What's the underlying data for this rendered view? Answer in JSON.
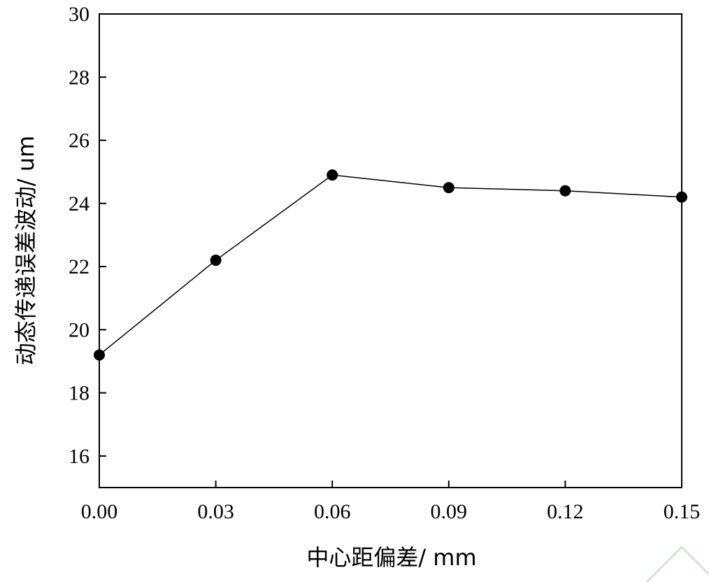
{
  "chart_data": {
    "type": "line",
    "title": "",
    "xlabel": "中心距偏差/ mm",
    "ylabel": "动态传递误差波动/ um",
    "xlim": [
      0.0,
      0.15
    ],
    "ylim": [
      15,
      30
    ],
    "x_ticks": [
      "0.00",
      "0.03",
      "0.06",
      "0.09",
      "0.12",
      "0.15"
    ],
    "y_ticks": [
      "16",
      "18",
      "20",
      "22",
      "24",
      "26",
      "28",
      "30"
    ],
    "grid": false,
    "legend": "none",
    "series": [
      {
        "x": [
          0.0,
          0.03,
          0.06,
          0.09,
          0.12,
          0.15
        ],
        "y": [
          19.2,
          22.2,
          24.9,
          24.5,
          24.4,
          24.2
        ],
        "marker": "filled-circle",
        "color": "#000000"
      }
    ]
  }
}
